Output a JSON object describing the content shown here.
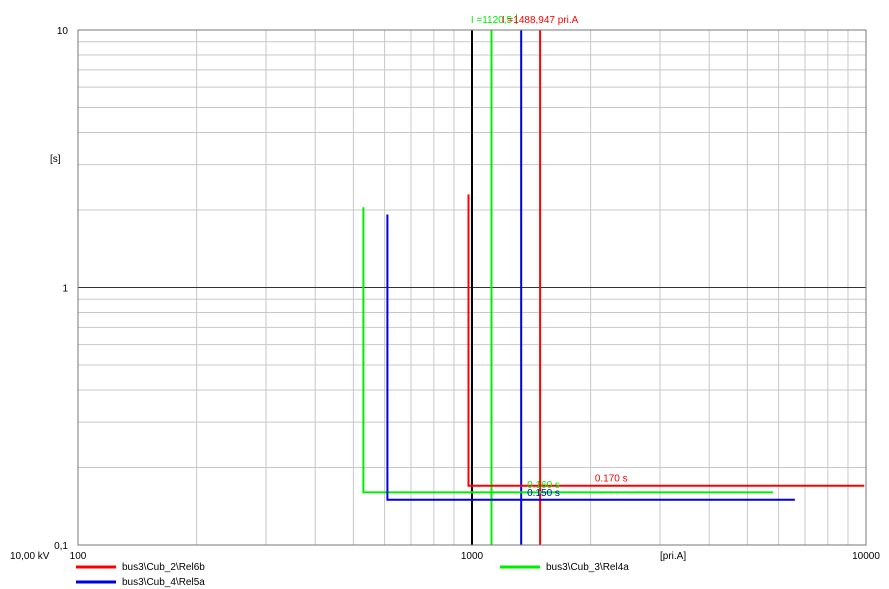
{
  "chart_data": {
    "type": "line",
    "xlabel": "[pri.A]",
    "ylabel": "[s]",
    "xscale": "log",
    "yscale": "log",
    "xlim": [
      100,
      10000
    ],
    "ylim": [
      0.1,
      10
    ],
    "grid": true,
    "voltage_label": "10,00 kV",
    "x_ticks": [
      {
        "v": 100,
        "label": "100"
      },
      {
        "v": 1000,
        "label": "1000"
      },
      {
        "v": 10000,
        "label": "10000"
      }
    ],
    "y_ticks": [
      {
        "v": 10,
        "label": "10"
      },
      {
        "v": 1,
        "label": "1"
      },
      {
        "v": 0.1,
        "label": "0,1"
      }
    ],
    "series": [
      {
        "name": "bus3\\Cub_2\\Rel6b",
        "color": "#ff0000",
        "points": [
          [
            980,
            2.3
          ],
          [
            980,
            0.17
          ],
          [
            9900,
            0.17
          ]
        ]
      },
      {
        "name": "bus3\\Cub_3\\Rel4a",
        "color": "#00ee00",
        "points": [
          [
            530,
            2.05
          ],
          [
            530,
            0.16
          ],
          [
            5800,
            0.16
          ]
        ]
      },
      {
        "name": "bus3\\Cub_4\\Rel5a",
        "color": "#0000e0",
        "points": [
          [
            610,
            1.92
          ],
          [
            610,
            0.15
          ],
          [
            6600,
            0.15
          ]
        ]
      }
    ],
    "vertical_markers": [
      {
        "x": 1000,
        "color": "#000000"
      },
      {
        "x": 1120.5,
        "color": "#00ee00",
        "label": "I =1120,5",
        "bar": true
      },
      {
        "x": 1333,
        "color": "#0000e0"
      },
      {
        "x": 1488.947,
        "color": "#ff0000",
        "label": "I =1488,947 pri.A"
      }
    ],
    "annotations": [
      {
        "text": "0.170 s",
        "color": "#ff0000",
        "x": 2050,
        "y": 0.172
      },
      {
        "text": "0.160 s",
        "color": "#00ee00",
        "x": 1380,
        "y": 0.162
      },
      {
        "text": "0.150 s",
        "color": "#0000e0",
        "x": 1380,
        "y": 0.151
      }
    ],
    "legend": {
      "placement": "bottom",
      "entries": [
        {
          "name": "bus3\\Cub_2\\Rel6b",
          "color": "#ff0000"
        },
        {
          "name": "bus3\\Cub_3\\Rel4a",
          "color": "#00ee00"
        },
        {
          "name": "bus3\\Cub_4\\Rel5a",
          "color": "#0000e0"
        }
      ]
    }
  }
}
